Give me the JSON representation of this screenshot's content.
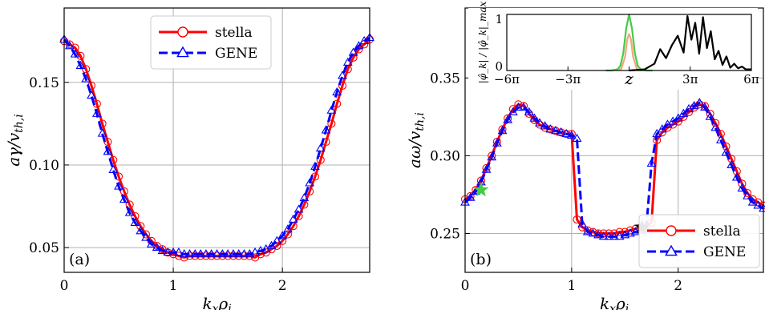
{
  "chart_data": [
    {
      "type": "line",
      "panel_label": "(a)",
      "xlabel": "k_x ρ_i",
      "ylabel": "aγ/v_{th,i}",
      "xlim": [
        0,
        2.8
      ],
      "ylim": [
        0.035,
        0.195
      ],
      "xticks": [
        0,
        1,
        2
      ],
      "xtick_labels": [
        "0",
        "1",
        "2"
      ],
      "yticks": [
        0.05,
        0.1,
        0.15
      ],
      "ytick_labels": [
        "0.05",
        "0.10",
        "0.15"
      ],
      "grid": true,
      "legend_position": "top-center",
      "series": [
        {
          "name": "stella",
          "color": "#ff0000",
          "line_style": "solid",
          "marker": "circle",
          "x": [
            0.0,
            0.05,
            0.1,
            0.15,
            0.2,
            0.25,
            0.3,
            0.35,
            0.4,
            0.45,
            0.5,
            0.55,
            0.6,
            0.65,
            0.7,
            0.75,
            0.8,
            0.85,
            0.9,
            0.95,
            1.0,
            1.05,
            1.1,
            1.15,
            1.2,
            1.25,
            1.3,
            1.35,
            1.4,
            1.45,
            1.5,
            1.55,
            1.6,
            1.65,
            1.7,
            1.75,
            1.8,
            1.85,
            1.9,
            1.95,
            2.0,
            2.05,
            2.1,
            2.15,
            2.2,
            2.25,
            2.3,
            2.35,
            2.4,
            2.45,
            2.5,
            2.55,
            2.6,
            2.65,
            2.7,
            2.75,
            2.8
          ],
          "y": [
            0.175,
            0.173,
            0.171,
            0.166,
            0.158,
            0.148,
            0.137,
            0.125,
            0.114,
            0.103,
            0.093,
            0.084,
            0.076,
            0.069,
            0.063,
            0.058,
            0.054,
            0.051,
            0.049,
            0.047,
            0.046,
            0.045,
            0.044,
            0.045,
            0.045,
            0.045,
            0.045,
            0.045,
            0.045,
            0.045,
            0.045,
            0.045,
            0.045,
            0.045,
            0.045,
            0.044,
            0.046,
            0.047,
            0.049,
            0.051,
            0.054,
            0.058,
            0.063,
            0.069,
            0.076,
            0.084,
            0.093,
            0.103,
            0.114,
            0.125,
            0.137,
            0.148,
            0.158,
            0.165,
            0.17,
            0.173,
            0.176
          ]
        },
        {
          "name": "GENE",
          "color": "#0000ff",
          "line_style": "dashed",
          "marker": "triangle",
          "x": [
            0.0,
            0.05,
            0.1,
            0.15,
            0.2,
            0.25,
            0.3,
            0.35,
            0.4,
            0.45,
            0.5,
            0.55,
            0.6,
            0.65,
            0.7,
            0.75,
            0.8,
            0.85,
            0.9,
            0.95,
            1.0,
            1.05,
            1.1,
            1.15,
            1.2,
            1.25,
            1.3,
            1.35,
            1.4,
            1.45,
            1.5,
            1.55,
            1.6,
            1.65,
            1.7,
            1.75,
            1.8,
            1.85,
            1.9,
            1.95,
            2.0,
            2.05,
            2.1,
            2.15,
            2.2,
            2.25,
            2.3,
            2.35,
            2.4,
            2.45,
            2.5,
            2.55,
            2.6,
            2.65,
            2.7,
            2.75,
            2.8
          ],
          "y": [
            0.176,
            0.172,
            0.167,
            0.16,
            0.152,
            0.142,
            0.131,
            0.119,
            0.108,
            0.097,
            0.087,
            0.079,
            0.071,
            0.065,
            0.06,
            0.056,
            0.052,
            0.05,
            0.048,
            0.047,
            0.047,
            0.047,
            0.046,
            0.046,
            0.046,
            0.046,
            0.046,
            0.046,
            0.046,
            0.046,
            0.046,
            0.046,
            0.046,
            0.046,
            0.046,
            0.047,
            0.048,
            0.049,
            0.051,
            0.054,
            0.057,
            0.061,
            0.067,
            0.073,
            0.08,
            0.089,
            0.099,
            0.11,
            0.121,
            0.133,
            0.144,
            0.154,
            0.162,
            0.168,
            0.172,
            0.175,
            0.177
          ]
        }
      ]
    },
    {
      "type": "line",
      "panel_label": "(b)",
      "xlabel": "k_x ρ_i",
      "ylabel": "aω/v_{th,i}",
      "xlim": [
        0,
        2.8
      ],
      "ylim": [
        0.225,
        0.395
      ],
      "xticks": [
        0,
        1,
        2
      ],
      "xtick_labels": [
        "0",
        "1",
        "2"
      ],
      "yticks": [
        0.25,
        0.3,
        0.35
      ],
      "ytick_labels": [
        "0.25",
        "0.30",
        "0.35"
      ],
      "grid": true,
      "legend_position": "bottom-right",
      "stars": [
        {
          "x": 0.15,
          "y": 0.278,
          "color": "#44cc44"
        },
        {
          "x": 1.66,
          "y": 0.254,
          "color": "#000000"
        }
      ],
      "series": [
        {
          "name": "stella",
          "color": "#ff0000",
          "line_style": "solid",
          "marker": "circle",
          "x": [
            0.0,
            0.05,
            0.1,
            0.15,
            0.2,
            0.25,
            0.3,
            0.35,
            0.4,
            0.45,
            0.5,
            0.55,
            0.6,
            0.65,
            0.7,
            0.75,
            0.8,
            0.85,
            0.9,
            0.95,
            1.0,
            1.05,
            1.1,
            1.15,
            1.2,
            1.25,
            1.3,
            1.35,
            1.4,
            1.45,
            1.5,
            1.55,
            1.6,
            1.65,
            1.7,
            1.75,
            1.8,
            1.85,
            1.9,
            1.95,
            2.0,
            2.05,
            2.1,
            2.15,
            2.2,
            2.25,
            2.3,
            2.35,
            2.4,
            2.45,
            2.5,
            2.55,
            2.6,
            2.65,
            2.7,
            2.75,
            2.8
          ],
          "y": [
            0.272,
            0.274,
            0.278,
            0.284,
            0.292,
            0.3,
            0.309,
            0.317,
            0.324,
            0.33,
            0.333,
            0.332,
            0.327,
            0.323,
            0.32,
            0.318,
            0.317,
            0.316,
            0.315,
            0.314,
            0.314,
            0.259,
            0.254,
            0.252,
            0.251,
            0.25,
            0.25,
            0.25,
            0.25,
            0.251,
            0.251,
            0.252,
            0.253,
            0.254,
            0.255,
            0.257,
            0.31,
            0.315,
            0.318,
            0.32,
            0.322,
            0.325,
            0.328,
            0.331,
            0.333,
            0.332,
            0.327,
            0.321,
            0.314,
            0.306,
            0.298,
            0.29,
            0.282,
            0.276,
            0.272,
            0.27,
            0.268
          ]
        },
        {
          "name": "GENE",
          "color": "#0000ff",
          "line_style": "dashed",
          "marker": "triangle",
          "x": [
            0.0,
            0.05,
            0.1,
            0.15,
            0.2,
            0.25,
            0.3,
            0.35,
            0.4,
            0.45,
            0.5,
            0.55,
            0.6,
            0.65,
            0.7,
            0.75,
            0.8,
            0.85,
            0.9,
            0.95,
            1.0,
            1.05,
            1.1,
            1.15,
            1.2,
            1.25,
            1.3,
            1.35,
            1.4,
            1.45,
            1.5,
            1.55,
            1.6,
            1.65,
            1.7,
            1.75,
            1.8,
            1.85,
            1.9,
            1.95,
            2.0,
            2.05,
            2.1,
            2.15,
            2.2,
            2.25,
            2.3,
            2.35,
            2.4,
            2.45,
            2.5,
            2.55,
            2.6,
            2.65,
            2.7,
            2.75,
            2.8
          ],
          "y": [
            0.27,
            0.273,
            0.277,
            0.283,
            0.291,
            0.299,
            0.308,
            0.316,
            0.323,
            0.328,
            0.331,
            0.331,
            0.328,
            0.324,
            0.321,
            0.319,
            0.317,
            0.316,
            0.315,
            0.314,
            0.313,
            0.311,
            0.256,
            0.251,
            0.25,
            0.249,
            0.248,
            0.248,
            0.248,
            0.248,
            0.249,
            0.25,
            0.251,
            0.252,
            0.253,
            0.295,
            0.314,
            0.317,
            0.32,
            0.322,
            0.324,
            0.327,
            0.33,
            0.332,
            0.334,
            0.331,
            0.325,
            0.318,
            0.31,
            0.302,
            0.294,
            0.286,
            0.279,
            0.274,
            0.27,
            0.268,
            0.266
          ]
        }
      ],
      "inset": {
        "xlabel": "z",
        "ylabel": "|φ̂_k| / |φ̂_k|_max",
        "xlim": [
          -6.2832,
          6.2832
        ],
        "ylim": [
          0,
          1
        ],
        "xtick_values": [
          -6.2832,
          -3.1416,
          0,
          3.1416,
          6.2832
        ],
        "xtick_labels": [
          "−6π",
          "−3π",
          "",
          "3π",
          "6π"
        ],
        "yticks": [
          0,
          1
        ],
        "ytick_labels": [
          "0",
          "1"
        ],
        "series": [
          {
            "color": "#44cc44",
            "x": [
              -1.2,
              -0.9,
              -0.6,
              -0.45,
              -0.3,
              -0.15,
              0.0,
              0.15,
              0.3,
              0.45,
              0.6,
              0.9,
              1.2
            ],
            "y": [
              0.0,
              0.0,
              0.02,
              0.08,
              0.3,
              0.75,
              1.0,
              0.75,
              0.3,
              0.08,
              0.02,
              0.0,
              0.0
            ]
          },
          {
            "color": "#f4a582",
            "x": [
              -0.6,
              -0.4,
              -0.2,
              -0.1,
              0.0,
              0.1,
              0.2,
              0.4,
              0.6
            ],
            "y": [
              0.0,
              0.03,
              0.25,
              0.55,
              0.65,
              0.55,
              0.25,
              0.03,
              0.0
            ]
          },
          {
            "color": "#000000",
            "x": [
              0.0,
              0.8,
              1.3,
              1.6,
              1.9,
              2.2,
              2.5,
              2.8,
              3.0,
              3.2,
              3.4,
              3.6,
              3.8,
              4.0,
              4.2,
              4.4,
              4.6,
              4.8,
              5.0,
              5.2,
              5.4,
              5.6,
              5.8,
              6.0,
              6.2832
            ],
            "y": [
              0.0,
              0.02,
              0.12,
              0.38,
              0.22,
              0.45,
              0.62,
              0.32,
              0.97,
              0.55,
              0.85,
              0.3,
              0.95,
              0.4,
              0.7,
              0.2,
              0.35,
              0.1,
              0.25,
              0.05,
              0.12,
              0.04,
              0.07,
              0.02,
              0.02
            ]
          }
        ]
      }
    }
  ]
}
